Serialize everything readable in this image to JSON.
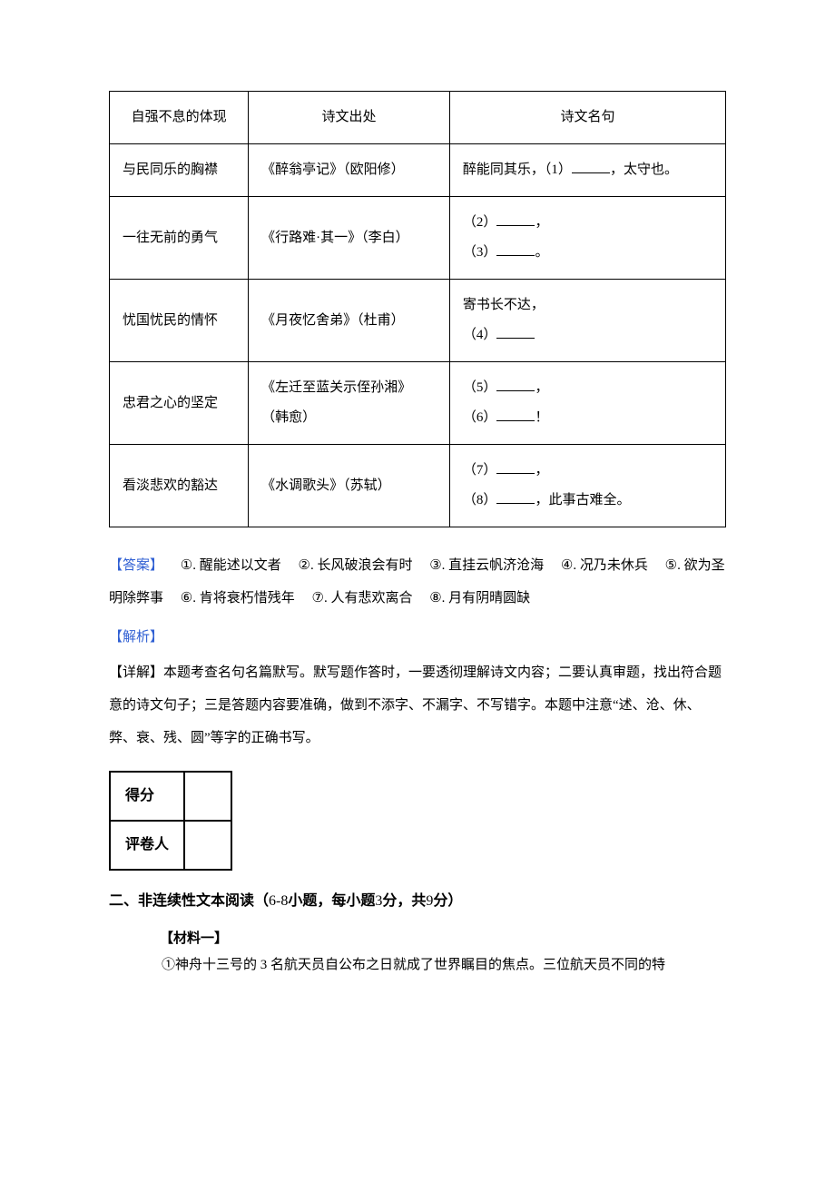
{
  "poem_table": {
    "headers": [
      "自强不息的体现",
      "诗文出处",
      "诗文名句"
    ],
    "rows": [
      {
        "col1": "与民同乐的胸襟",
        "col2": "《醉翁亭记》（欧阳修）",
        "col3_pre": "醉能同其乐，（1）",
        "col3_post": "，太守也。"
      },
      {
        "col1": "一往无前的勇气",
        "col2": "《行路难·其一》（李白）",
        "line1_pre": "（2）",
        "line1_post": "，",
        "line2_pre": "（3）",
        "line2_post": "。"
      },
      {
        "col1": "忧国忧民的情怀",
        "col2": "《月夜忆舍弟》（杜甫）",
        "line0": "寄书长不达，",
        "line1_pre": "（4）",
        "line1_post": ""
      },
      {
        "col1": "忠君之心的坚定",
        "col2a": "《左迁至蓝关示侄孙湘》",
        "col2b": "（韩愈）",
        "line1_pre": "（5）",
        "line1_post": "，",
        "line2_pre": "（6）",
        "line2_post": "！"
      },
      {
        "col1": "看淡悲欢的豁达",
        "col2": "《水调歌头》（苏轼）",
        "line1_pre": "（7）",
        "line1_post": "，",
        "line2_pre": "（8）",
        "line2_post": "，此事古难全。"
      }
    ]
  },
  "answers": {
    "label": "【答案】",
    "items": [
      {
        "num": "①",
        "sep": ". ",
        "text": "醒能述以文者"
      },
      {
        "num": "②",
        "sep": ". ",
        "text": "长风破浪会有时"
      },
      {
        "num": "③",
        "sep": ". ",
        "text": "直挂云帆济沧海"
      },
      {
        "num": "④",
        "sep": ". ",
        "text": "况乃未休兵"
      },
      {
        "num": "⑤",
        "sep": ". ",
        "text": "欲为圣明除弊事"
      },
      {
        "num": "⑥",
        "sep": ". ",
        "text": "肯将衰朽惜残年"
      },
      {
        "num": "⑦",
        "sep": ". ",
        "text": "人有悲欢离合"
      },
      {
        "num": "⑧",
        "sep": ". ",
        "text": "月有阴晴圆缺"
      }
    ]
  },
  "explain": {
    "label": "【解析】",
    "text": "【详解】本题考查名句名篇默写。默写题作答时，一要透彻理解诗文内容；二要认真审题，找出符合题意的诗文句子；三是答题内容要准确，做到不添字、不漏字、不写错字。本题中注意“述、沧、休、弊、衰、残、圆”等字的正确书写。"
  },
  "score_table": {
    "r1": "得分",
    "r2": "评卷人"
  },
  "section2": {
    "heading_bold": "二、非连续性文本阅读（",
    "heading_mid": "6-8",
    "heading_bold2": "小题，每小题",
    "heading_mid2": "3",
    "heading_bold3": "分，共",
    "heading_mid3": "9",
    "heading_bold4": "分）",
    "material_label": "【材料一】",
    "para1": "①神舟十三号的 3 名航天员自公布之日就成了世界瞩目的焦点。三位航天员不同的特"
  },
  "colors": {
    "blue": "#2f5fd3",
    "black": "#000000"
  }
}
